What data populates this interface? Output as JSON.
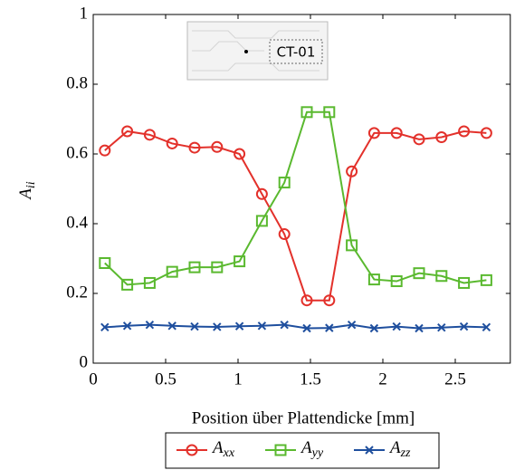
{
  "chart_data": {
    "type": "line",
    "xlabel": "Position über Plattendicke [mm]",
    "ylabel": "A_ii",
    "annotation": "CT-01",
    "x": [
      0.08,
      0.235,
      0.39,
      0.545,
      0.7,
      0.855,
      1.01,
      1.165,
      1.32,
      1.475,
      1.63,
      1.785,
      1.94,
      2.095,
      2.25,
      2.405,
      2.56,
      2.715
    ],
    "series": [
      {
        "name": "A_xx",
        "color": "#e3312b",
        "marker": "circle",
        "values": [
          0.61,
          0.665,
          0.655,
          0.63,
          0.618,
          0.62,
          0.6,
          0.485,
          0.37,
          0.18,
          0.18,
          0.55,
          0.66,
          0.66,
          0.642,
          0.648,
          0.665,
          0.66
        ]
      },
      {
        "name": "A_yy",
        "color": "#5ab92f",
        "marker": "square",
        "values": [
          0.287,
          0.225,
          0.23,
          0.262,
          0.275,
          0.275,
          0.292,
          0.408,
          0.518,
          0.72,
          0.72,
          0.338,
          0.24,
          0.235,
          0.258,
          0.25,
          0.23,
          0.238
        ]
      },
      {
        "name": "A_zz",
        "color": "#1f4f9e",
        "marker": "x",
        "values": [
          0.103,
          0.107,
          0.11,
          0.107,
          0.105,
          0.104,
          0.106,
          0.107,
          0.11,
          0.1,
          0.101,
          0.11,
          0.1,
          0.105,
          0.1,
          0.102,
          0.105,
          0.103
        ]
      }
    ],
    "xlim": [
      0,
      2.88
    ],
    "ylim": [
      0,
      1
    ],
    "xticks": [
      0,
      0.5,
      1,
      1.5,
      2,
      2.5
    ],
    "yticks": [
      0,
      0.2,
      0.4,
      0.6,
      0.8,
      1
    ]
  }
}
